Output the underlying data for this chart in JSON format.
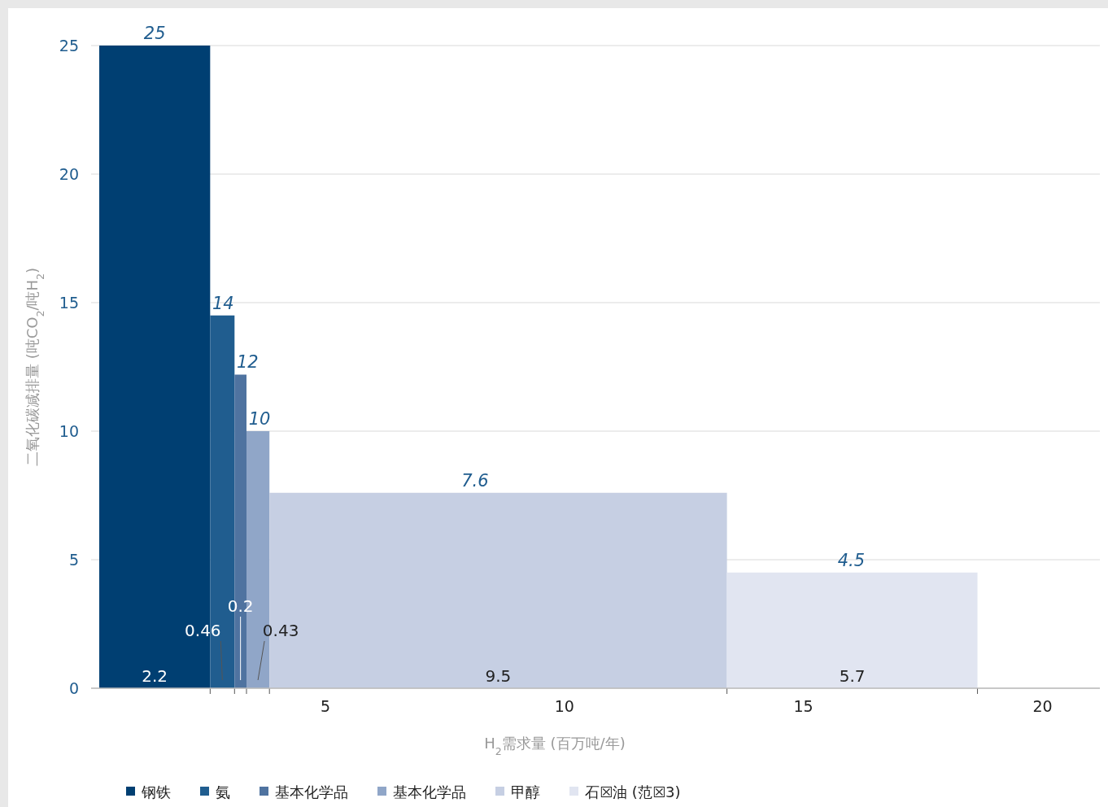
{
  "chart_data": {
    "type": "area",
    "xlabel": "H$_{2}$需求量 (百万吨/年)",
    "ylabel": "二氧化碳减排量 (吨CO$_{2}$/吨H$_{2}$)",
    "xlim": [
      0.1,
      21.2
    ],
    "ylim": [
      0,
      25
    ],
    "xticks": [
      5,
      10,
      15,
      20
    ],
    "yticks": [
      0,
      5,
      10,
      15,
      20,
      25
    ],
    "grid": "y",
    "legend": "bottom",
    "series": [
      {
        "name": "钢铁",
        "color": "#003f72",
        "x": [
          0.27,
          1.43,
          2.59
        ],
        "values": [
          25,
          25,
          25
        ],
        "value_labels": [
          null,
          "25",
          null
        ]
      },
      {
        "name": "氨",
        "color": "#205d8f",
        "x": [
          2.59,
          3.1
        ],
        "values": [
          14.5,
          14.5
        ],
        "value_labels": [
          "14",
          null
        ]
      },
      {
        "name": "基本化学品",
        "color": "#4f73a0",
        "x": [
          3.1,
          3.35
        ],
        "values": [
          12.2,
          12.2
        ],
        "value_labels": [
          "12",
          null
        ]
      },
      {
        "name": "基本化学品",
        "color": "#90a6c8",
        "x": [
          3.35,
          3.83
        ],
        "values": [
          10,
          10
        ],
        "value_labels": [
          "10",
          null
        ]
      },
      {
        "name": "甲醇",
        "color": "#c6cfe3",
        "x": [
          3.83,
          8.13,
          13.4
        ],
        "values": [
          7.6,
          7.6,
          7.6
        ],
        "value_labels": [
          null,
          "7.6",
          null
        ]
      },
      {
        "name": "石☒油 (范☒3)",
        "color": "#e1e5f1",
        "x": [
          13.4,
          16.0,
          18.64
        ],
        "values": [
          4.5,
          4.5,
          4.5
        ],
        "value_labels": [
          null,
          "4.5",
          null
        ]
      }
    ],
    "annotations": [
      "2.2",
      "0.46",
      "0.2",
      "0.43",
      "9.5",
      "5.7"
    ]
  }
}
